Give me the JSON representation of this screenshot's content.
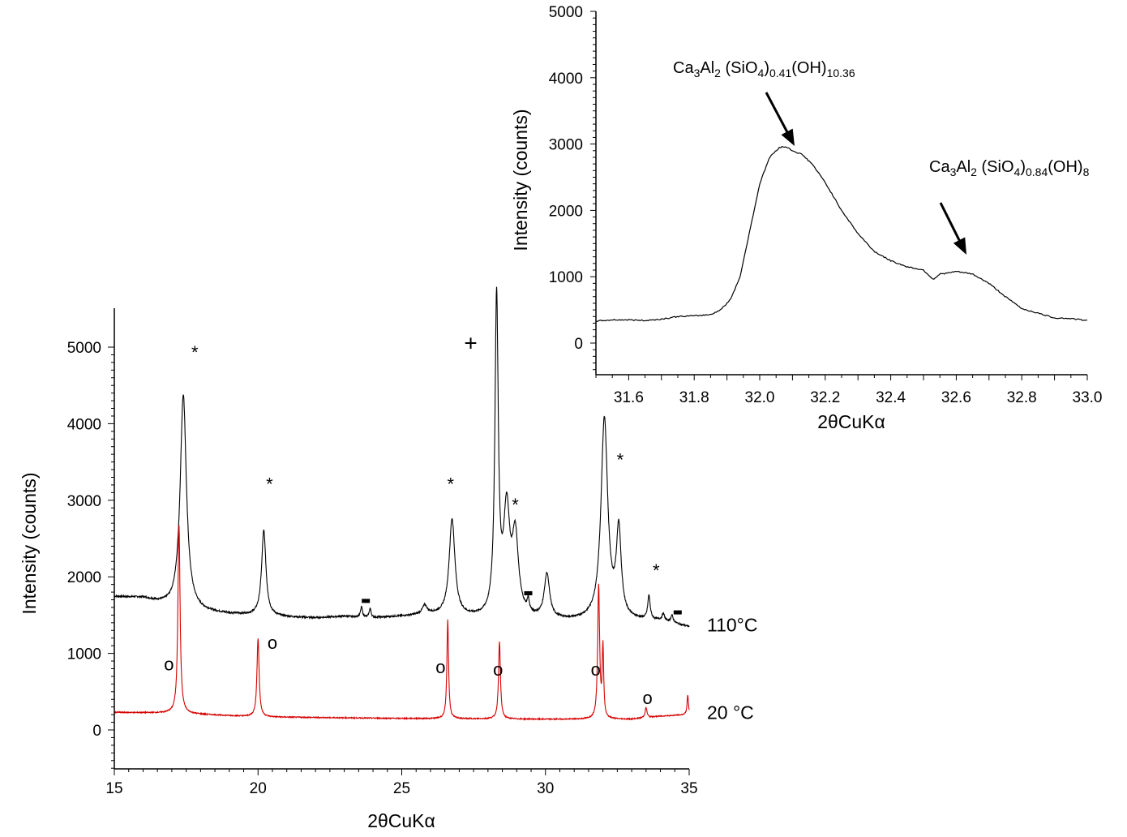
{
  "chart_data": [
    {
      "id": "main",
      "type": "line",
      "xlabel": "2θCuKα",
      "ylabel": "Intensity (counts)",
      "xlim": [
        15,
        35
      ],
      "ylim": [
        -500,
        5300
      ],
      "x_ticks": [
        "15",
        "20",
        "25",
        "30",
        "35"
      ],
      "y_ticks": [
        "0",
        "1000",
        "2000",
        "3000",
        "4000",
        "5000"
      ],
      "grid": false,
      "series": [
        {
          "name": "110°C",
          "color": "#000000",
          "baseline_points": [
            [
              15,
              1740
            ],
            [
              16,
              1720
            ],
            [
              17,
              1600
            ],
            [
              18,
              1540
            ],
            [
              19,
              1510
            ],
            [
              20,
              1490
            ],
            [
              21,
              1470
            ],
            [
              22,
              1460
            ],
            [
              23,
              1480
            ],
            [
              24,
              1460
            ],
            [
              25,
              1480
            ],
            [
              26,
              1500
            ],
            [
              27,
              1470
            ],
            [
              28,
              1450
            ],
            [
              29,
              1460
            ],
            [
              30,
              1430
            ],
            [
              31,
              1420
            ],
            [
              32,
              1420
            ],
            [
              33,
              1420
            ],
            [
              34,
              1420
            ],
            [
              35,
              1340
            ]
          ],
          "peaks": [
            {
              "x": 17.4,
              "height": 4380,
              "width": 0.13
            },
            {
              "x": 20.2,
              "height": 2600,
              "width": 0.09
            },
            {
              "x": 23.6,
              "height": 1600,
              "width": 0.04
            },
            {
              "x": 23.9,
              "height": 1580,
              "width": 0.04
            },
            {
              "x": 25.8,
              "height": 1610,
              "width": 0.1
            },
            {
              "x": 26.75,
              "height": 2740,
              "width": 0.12
            },
            {
              "x": 28.3,
              "height": 5580,
              "width": 0.07
            },
            {
              "x": 28.65,
              "height": 2780,
              "width": 0.13
            },
            {
              "x": 28.95,
              "height": 2450,
              "width": 0.13
            },
            {
              "x": 29.4,
              "height": 1600,
              "width": 0.04
            },
            {
              "x": 30.05,
              "height": 2010,
              "width": 0.11
            },
            {
              "x": 32.05,
              "height": 4050,
              "width": 0.14
            },
            {
              "x": 32.55,
              "height": 2550,
              "width": 0.1
            },
            {
              "x": 33.6,
              "height": 1730,
              "width": 0.05
            },
            {
              "x": 34.1,
              "height": 1500,
              "width": 0.05
            },
            {
              "x": 34.4,
              "height": 1480,
              "width": 0.05
            }
          ]
        },
        {
          "name": "20 °C",
          "color": "#d60000",
          "baseline_points": [
            [
              15,
              230
            ],
            [
              17,
              220
            ],
            [
              20,
              170
            ],
            [
              25,
              150
            ],
            [
              30,
              140
            ],
            [
              33,
              140
            ],
            [
              34,
              180
            ],
            [
              35,
              200
            ]
          ],
          "peaks": [
            {
              "x": 17.25,
              "height": 2680,
              "width": 0.045
            },
            {
              "x": 20.0,
              "height": 1190,
              "width": 0.045
            },
            {
              "x": 26.6,
              "height": 1440,
              "width": 0.035
            },
            {
              "x": 28.4,
              "height": 1150,
              "width": 0.04
            },
            {
              "x": 31.85,
              "height": 1880,
              "width": 0.04
            },
            {
              "x": 32.0,
              "height": 1050,
              "width": 0.03
            },
            {
              "x": 33.5,
              "height": 290,
              "width": 0.04
            },
            {
              "x": 34.95,
              "height": 450,
              "width": 0.03
            }
          ]
        }
      ],
      "annotations": [
        {
          "text": "*",
          "x": 17.8,
          "y": 4850
        },
        {
          "text": "*",
          "x": 20.4,
          "y": 3130
        },
        {
          "text": "*",
          "x": 26.7,
          "y": 3130
        },
        {
          "text": "*",
          "x": 28.95,
          "y": 2860
        },
        {
          "text": "*",
          "x": 32.6,
          "y": 3450
        },
        {
          "text": "*",
          "x": 33.85,
          "y": 2000
        },
        {
          "text": "+",
          "x": 27.4,
          "y": 4950
        },
        {
          "text": "-",
          "x": 23.75,
          "y": 1680
        },
        {
          "text": "-",
          "x": 29.4,
          "y": 1780
        },
        {
          "text": "-",
          "x": 34.6,
          "y": 1530
        },
        {
          "text": "o",
          "x": 16.9,
          "y": 780
        },
        {
          "text": "o",
          "x": 20.5,
          "y": 1060
        },
        {
          "text": "o",
          "x": 26.35,
          "y": 740
        },
        {
          "text": "o",
          "x": 28.35,
          "y": 710
        },
        {
          "text": "o",
          "x": 31.75,
          "y": 710
        },
        {
          "text": "o",
          "x": 33.55,
          "y": 340
        }
      ],
      "trace_labels": [
        {
          "text": "110°C",
          "y": 1370
        },
        {
          "text": "20 °C",
          "y": 230
        }
      ]
    },
    {
      "id": "inset",
      "type": "line",
      "xlabel": "2θCuKα",
      "ylabel": "Intensity (counts)",
      "xlim": [
        31.5,
        33.0
      ],
      "ylim": [
        -500,
        5000
      ],
      "x_ticks": [
        "31.6",
        "31.8",
        "32.0",
        "32.2",
        "32.4",
        "32.6",
        "32.8",
        "33.0"
      ],
      "y_ticks": [
        "0",
        "1000",
        "2000",
        "3000",
        "4000",
        "5000"
      ],
      "grid": false,
      "series": [
        {
          "name": "",
          "color": "#000000",
          "points": [
            [
              31.5,
              330
            ],
            [
              31.55,
              350
            ],
            [
              31.6,
              350
            ],
            [
              31.65,
              340
            ],
            [
              31.7,
              360
            ],
            [
              31.75,
              400
            ],
            [
              31.8,
              410
            ],
            [
              31.85,
              430
            ],
            [
              31.88,
              500
            ],
            [
              31.91,
              650
            ],
            [
              31.94,
              1000
            ],
            [
              31.97,
              1700
            ],
            [
              32.0,
              2400
            ],
            [
              32.03,
              2800
            ],
            [
              32.06,
              2950
            ],
            [
              32.08,
              2960
            ],
            [
              32.1,
              2900
            ],
            [
              32.13,
              2840
            ],
            [
              32.16,
              2700
            ],
            [
              32.2,
              2420
            ],
            [
              32.25,
              2000
            ],
            [
              32.3,
              1650
            ],
            [
              32.35,
              1380
            ],
            [
              32.4,
              1240
            ],
            [
              32.45,
              1150
            ],
            [
              32.5,
              1100
            ],
            [
              32.53,
              960
            ],
            [
              32.55,
              1040
            ],
            [
              32.58,
              1060
            ],
            [
              32.6,
              1080
            ],
            [
              32.65,
              1040
            ],
            [
              32.7,
              900
            ],
            [
              32.75,
              700
            ],
            [
              32.8,
              520
            ],
            [
              32.85,
              450
            ],
            [
              32.9,
              380
            ],
            [
              32.95,
              370
            ],
            [
              33.0,
              340
            ]
          ]
        }
      ],
      "peak_labels": [
        {
          "base": "Ca",
          "parts": [
            [
              "3",
              "sub"
            ],
            [
              "Al",
              ""
            ],
            [
              "2",
              "sub"
            ],
            [
              " (SiO",
              ""
            ],
            [
              "4",
              "sub"
            ],
            [
              ")",
              ""
            ],
            [
              "0.41",
              "sub"
            ],
            [
              "(OH)",
              ""
            ],
            [
              "10.36",
              "sub"
            ]
          ],
          "x": 32.08,
          "y": 2960
        },
        {
          "base": "Ca",
          "parts": [
            [
              "3",
              "sub"
            ],
            [
              "Al",
              ""
            ],
            [
              "2",
              "sub"
            ],
            [
              " (SiO",
              ""
            ],
            [
              "4",
              "sub"
            ],
            [
              ")",
              ""
            ],
            [
              "0.84",
              "sub"
            ],
            [
              "(OH)",
              ""
            ],
            [
              "8",
              "sub"
            ]
          ],
          "x": 32.63,
          "y": 1100
        }
      ]
    }
  ]
}
